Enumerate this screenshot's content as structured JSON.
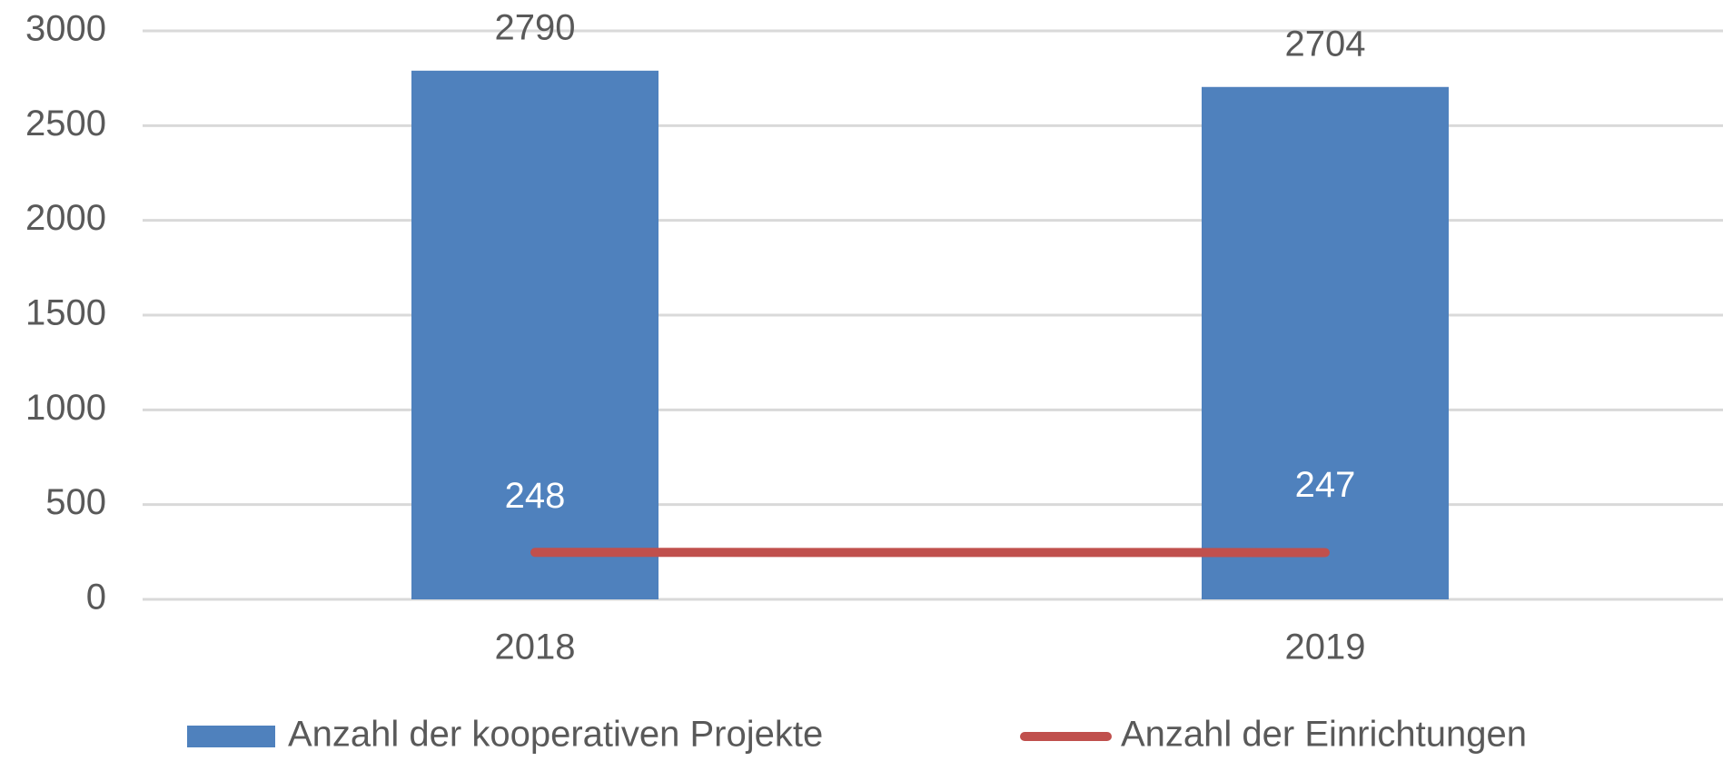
{
  "chart_data": {
    "type": "bar",
    "categories": [
      "2018",
      "2019"
    ],
    "series": [
      {
        "name": "Anzahl der kooperativen Projekte",
        "type": "bar",
        "color": "#4f81bd",
        "label_color": "#595959",
        "values": [
          2790,
          2704
        ]
      },
      {
        "name": "Anzahl der Einrichtungen",
        "type": "line",
        "color": "#c0504d",
        "label_color": "#ffffff",
        "values": [
          248,
          247
        ]
      }
    ],
    "ylim": [
      0,
      3000
    ],
    "yticks": [
      0,
      500,
      1000,
      1500,
      2000,
      2500,
      3000
    ],
    "grid": true,
    "legend": "bottom"
  }
}
